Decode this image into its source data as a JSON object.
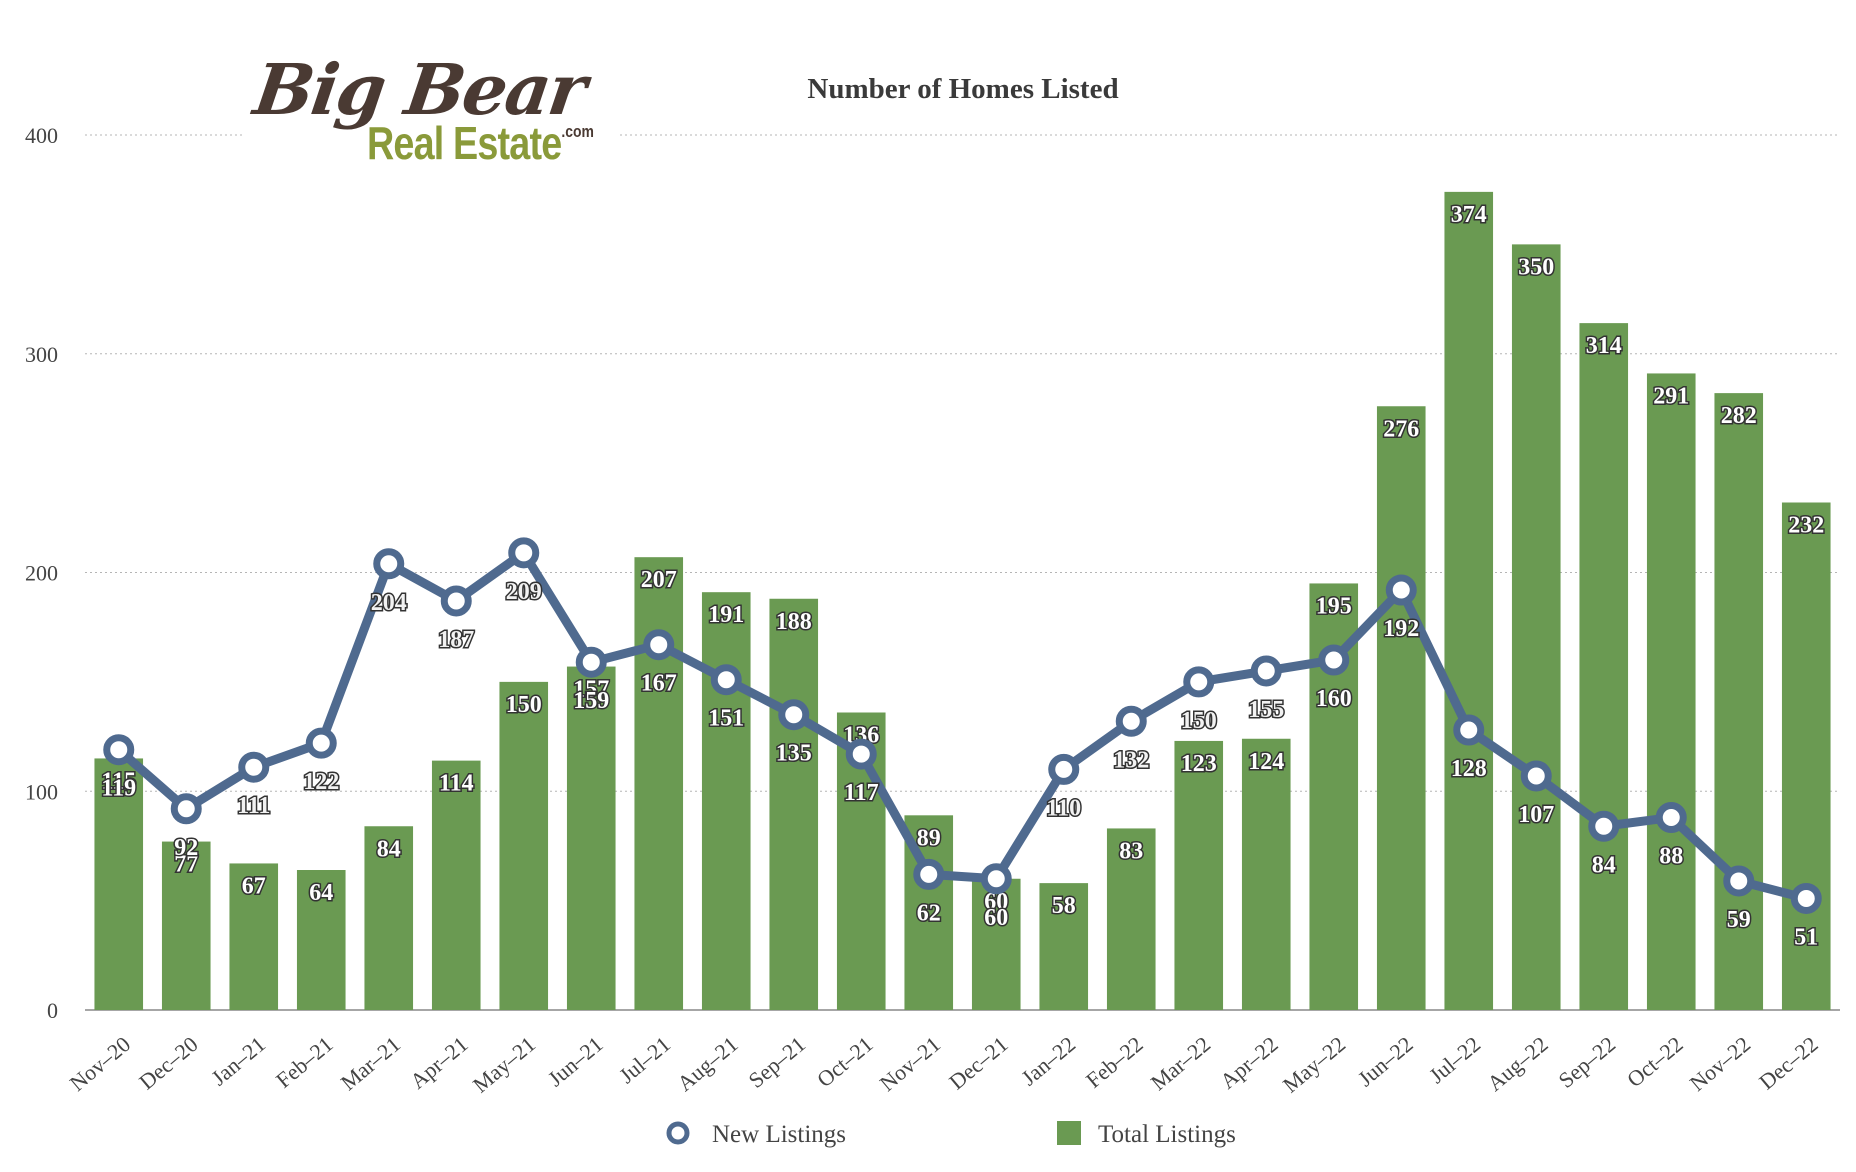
{
  "logo": {
    "line1": "Big Bear",
    "line2": "Real Estate",
    "suffix": ".com"
  },
  "colors": {
    "bar": "#6a9a52",
    "line": "#4f6a8f",
    "grid": "#b5b5b5",
    "axis": "#888888"
  },
  "chart_data": {
    "type": "bar",
    "title": "Number of Homes Listed",
    "xlabel": "",
    "ylabel": "",
    "ylim": [
      0,
      400
    ],
    "yticks": [
      0,
      100,
      200,
      300,
      400
    ],
    "grid": true,
    "legend_position": "bottom",
    "categories": [
      "Nov–20",
      "Dec–20",
      "Jan–21",
      "Feb–21",
      "Mar–21",
      "Apr–21",
      "May–21",
      "Jun–21",
      "Jul–21",
      "Aug–21",
      "Sep–21",
      "Oct–21",
      "Nov–21",
      "Dec–21",
      "Jan–22",
      "Feb–22",
      "Mar–22",
      "Apr–22",
      "May–22",
      "Jun–22",
      "Jul–22",
      "Aug–22",
      "Sep–22",
      "Oct–22",
      "Nov–22",
      "Dec–22"
    ],
    "series": [
      {
        "name": "Total Listings",
        "type": "bar",
        "values": [
          115,
          77,
          67,
          64,
          84,
          114,
          150,
          157,
          207,
          191,
          188,
          136,
          89,
          60,
          58,
          83,
          123,
          124,
          195,
          276,
          374,
          350,
          314,
          291,
          282,
          232
        ]
      },
      {
        "name": "New Listings",
        "type": "line",
        "values": [
          119,
          92,
          111,
          122,
          204,
          187,
          209,
          159,
          167,
          151,
          135,
          117,
          62,
          60,
          110,
          132,
          150,
          155,
          160,
          192,
          128,
          107,
          84,
          88,
          59,
          51
        ]
      }
    ]
  }
}
